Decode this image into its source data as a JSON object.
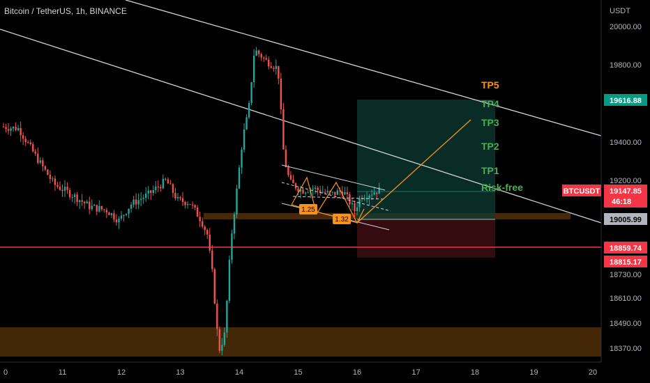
{
  "header": {
    "title": "Bitcoin / TetherUS, 1h, BINANCE"
  },
  "colors": {
    "up": "#26a69a",
    "down": "#ef5350",
    "background": "#000000",
    "trendline": "#d1d4dc",
    "orange": "#f7931a",
    "tp_green": "#4caf50",
    "hline_red": "#f23645",
    "zone": "#4a2b08",
    "profit_zone": "#0e3b33",
    "loss_zone": "#3a0d12"
  },
  "chart_data": {
    "type": "candlestick",
    "symbol": "BTCUSDT",
    "timeframe": "1h",
    "exchange": "BINANCE",
    "y_axis_unit": "USDT",
    "x_ticks": [
      "0",
      "11",
      "12",
      "13",
      "14",
      "15",
      "16",
      "17",
      "18",
      "19",
      "20"
    ],
    "y_ticks": [
      20000.0,
      19800.0,
      19400.0,
      19200.0,
      18730.0,
      18610.0,
      18490.0,
      18370.0
    ],
    "ylim": [
      18325,
      20100
    ],
    "price_path": [
      [
        10.0,
        19480
      ],
      [
        10.3,
        19470
      ],
      [
        10.6,
        19320
      ],
      [
        10.9,
        19180
      ],
      [
        11.2,
        19130
      ],
      [
        11.5,
        19070
      ],
      [
        11.8,
        19050
      ],
      [
        12.0,
        19000
      ],
      [
        12.2,
        19080
      ],
      [
        12.5,
        19130
      ],
      [
        12.8,
        19200
      ],
      [
        13.0,
        19100
      ],
      [
        13.2,
        19090
      ],
      [
        13.4,
        19000
      ],
      [
        13.5,
        18930
      ],
      [
        13.6,
        18700
      ],
      [
        13.65,
        18500
      ],
      [
        13.7,
        18360
      ],
      [
        13.8,
        18440
      ],
      [
        13.9,
        18900
      ],
      [
        14.0,
        19150
      ],
      [
        14.1,
        19420
      ],
      [
        14.2,
        19560
      ],
      [
        14.3,
        19880
      ],
      [
        14.5,
        19820
      ],
      [
        14.7,
        19780
      ],
      [
        14.8,
        19320
      ],
      [
        14.9,
        19190
      ],
      [
        15.1,
        19150
      ],
      [
        15.3,
        19160
      ],
      [
        15.6,
        19130
      ],
      [
        15.8,
        19150
      ],
      [
        16.0,
        19050
      ],
      [
        16.1,
        19120
      ],
      [
        16.4,
        19150
      ]
    ],
    "last_price": "19147.85",
    "countdown": "46:18",
    "price_tags": [
      {
        "label": "19616.88",
        "value": 19616.88,
        "color": "#089981"
      },
      {
        "label": "19005.99",
        "value": 19005.99,
        "color": "#b2b5be"
      },
      {
        "label": "18859.74",
        "value": 18859.74,
        "color": "#f23645"
      },
      {
        "label": "18815.17",
        "value": 18815.17,
        "color": "#f23645"
      }
    ],
    "symbol_tag": "BTCUSDT",
    "targets": [
      {
        "label": "TP5",
        "color": "#f7931a"
      },
      {
        "label": "TP4",
        "color": "#4caf50"
      },
      {
        "label": "TP3",
        "color": "#4caf50"
      },
      {
        "label": "TP2",
        "color": "#4caf50"
      },
      {
        "label": "TP1",
        "color": "#4caf50"
      },
      {
        "label": "Risk-free",
        "color": "#4caf50"
      }
    ],
    "fib_labels": [
      "1.25",
      "1.32"
    ],
    "grid": false,
    "annotations": [
      "descending channel",
      "support zones",
      "long position box",
      "projected path"
    ]
  }
}
